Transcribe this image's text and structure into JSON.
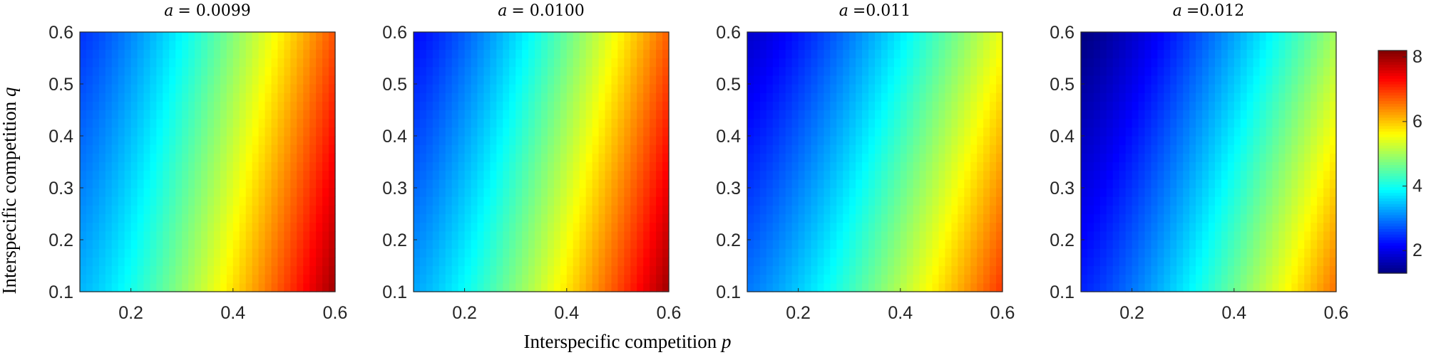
{
  "chart_data": {
    "type": "heatmap",
    "xlabel_prefix": "Interspecific competition ",
    "xlabel_var": "p",
    "ylabel_prefix": "Interspecific competition ",
    "ylabel_var": "q",
    "xlim": [
      0.1,
      0.6
    ],
    "ylim": [
      0.1,
      0.6
    ],
    "x_ticks": [
      "0.2",
      "0.4",
      "0.6"
    ],
    "y_ticks": [
      "0.1",
      "0.2",
      "0.3",
      "0.4",
      "0.5",
      "0.6"
    ],
    "colorbar": {
      "range": [
        1.3,
        8.2
      ],
      "ticks": [
        "2",
        "4",
        "6",
        "8"
      ],
      "colormap": "jet"
    },
    "panels": [
      {
        "title_var": "a",
        "title_value": "= 0.0099",
        "corners": {
          "x0y0": 3.4,
          "x1y0": 8.0,
          "x0y1": 2.5,
          "x1y1": 6.8
        }
      },
      {
        "title_var": "a",
        "title_value": "= 0.0100",
        "corners": {
          "x0y0": 3.3,
          "x1y0": 8.0,
          "x0y1": 2.2,
          "x1y1": 6.7
        }
      },
      {
        "title_var": "a",
        "title_value": "=0.011",
        "corners": {
          "x0y0": 3.0,
          "x1y0": 7.0,
          "x0y1": 1.8,
          "x1y1": 5.5
        }
      },
      {
        "title_var": "a",
        "title_value": "=0.012",
        "corners": {
          "x0y0": 2.4,
          "x1y0": 6.6,
          "x0y1": 1.3,
          "x1y1": 5.0
        }
      }
    ]
  }
}
